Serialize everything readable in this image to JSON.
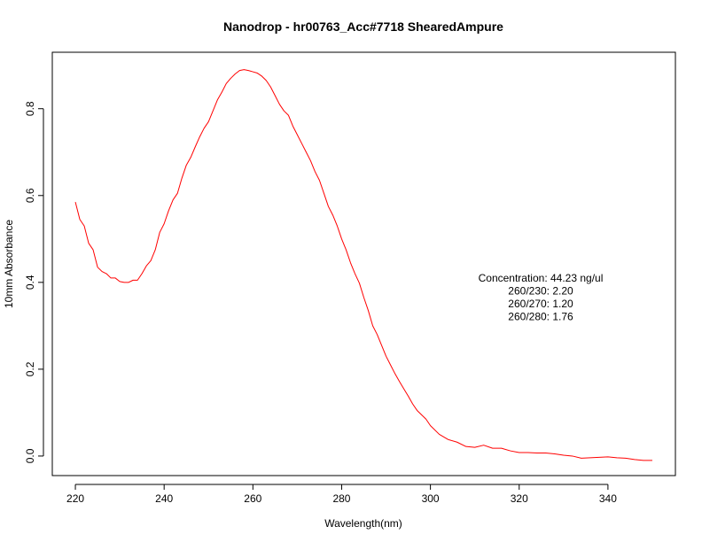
{
  "chart_data": {
    "type": "line",
    "title": "Nanodrop - hr00763_Acc#7718 ShearedAmpure",
    "xlabel": "Wavelength(nm)",
    "ylabel": "10mm Absorbance",
    "xlim": [
      214.8,
      355.2
    ],
    "ylim": [
      -0.045,
      0.93
    ],
    "xticks": [
      220,
      240,
      260,
      280,
      300,
      320,
      340
    ],
    "yticks": [
      0.0,
      0.2,
      0.4,
      0.6,
      0.8
    ],
    "ytick_labels": [
      "0.0",
      "0.2",
      "0.4",
      "0.6",
      "0.8"
    ],
    "grid": false,
    "series": [
      {
        "color": "#ff0000",
        "x": [
          220,
          221,
          222,
          223,
          224,
          225,
          226,
          227,
          228,
          229,
          230,
          231,
          232,
          233,
          234,
          235,
          236,
          237,
          238,
          239,
          240,
          241,
          242,
          243,
          244,
          245,
          246,
          247,
          248,
          249,
          250,
          251,
          252,
          253,
          254,
          255,
          256,
          257,
          258,
          259,
          260,
          261,
          262,
          263,
          264,
          265,
          266,
          267,
          268,
          269,
          270,
          271,
          272,
          273,
          274,
          275,
          276,
          277,
          278,
          279,
          280,
          281,
          282,
          283,
          284,
          285,
          286,
          287,
          288,
          289,
          290,
          291,
          292,
          293,
          294,
          295,
          296,
          297,
          298,
          299,
          300,
          302,
          304,
          306,
          308,
          310,
          312,
          314,
          316,
          318,
          320,
          322,
          324,
          326,
          328,
          330,
          332,
          334,
          336,
          338,
          340,
          342,
          344,
          346,
          348,
          350
        ],
        "y": [
          0.585,
          0.545,
          0.53,
          0.49,
          0.475,
          0.435,
          0.425,
          0.42,
          0.41,
          0.41,
          0.402,
          0.4,
          0.4,
          0.405,
          0.405,
          0.42,
          0.438,
          0.45,
          0.475,
          0.515,
          0.535,
          0.565,
          0.59,
          0.605,
          0.64,
          0.67,
          0.688,
          0.712,
          0.735,
          0.755,
          0.77,
          0.795,
          0.82,
          0.838,
          0.858,
          0.87,
          0.88,
          0.888,
          0.89,
          0.888,
          0.885,
          0.882,
          0.875,
          0.865,
          0.85,
          0.83,
          0.81,
          0.795,
          0.785,
          0.76,
          0.74,
          0.72,
          0.7,
          0.68,
          0.655,
          0.635,
          0.605,
          0.575,
          0.555,
          0.53,
          0.5,
          0.475,
          0.445,
          0.42,
          0.398,
          0.365,
          0.335,
          0.3,
          0.28,
          0.255,
          0.23,
          0.21,
          0.19,
          0.172,
          0.155,
          0.138,
          0.12,
          0.105,
          0.095,
          0.085,
          0.07,
          0.05,
          0.038,
          0.032,
          0.022,
          0.02,
          0.025,
          0.018,
          0.018,
          0.012,
          0.008,
          0.008,
          0.007,
          0.007,
          0.005,
          0.002,
          0.0,
          -0.005,
          -0.004,
          -0.003,
          -0.002,
          -0.004,
          -0.005,
          -0.008,
          -0.01,
          -0.01
        ]
      }
    ],
    "annotations": [
      "Concentration: 44.23 ng/ul",
      "260/230: 2.20",
      "260/270: 1.20",
      "260/280: 1.76"
    ]
  }
}
